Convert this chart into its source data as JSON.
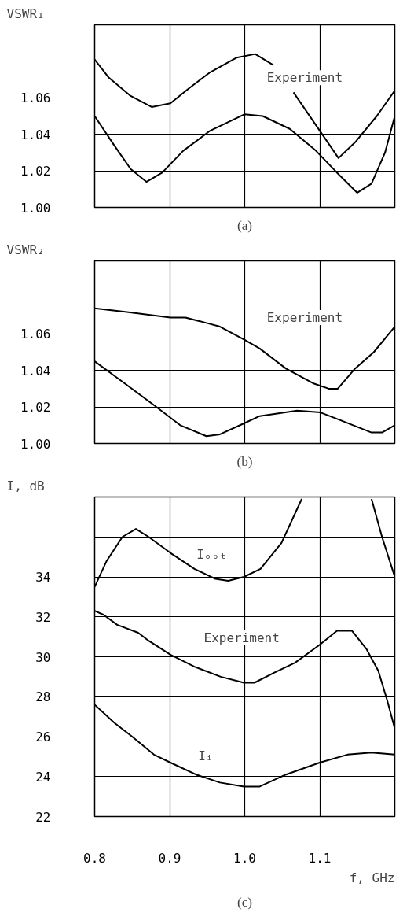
{
  "chart_data": [
    {
      "type": "line",
      "ylabel": "VSWR₁",
      "xlim": [
        0.8,
        1.2
      ],
      "ylim": [
        1.0,
        1.1
      ],
      "xticks": [
        0.8,
        0.9,
        1.0,
        1.1
      ],
      "yticks": [
        {
          "value": 1.0,
          "label": "1.00"
        },
        1.02,
        1.04,
        1.06,
        {
          "value": 1.08,
          "label": null
        }
      ],
      "tick_labels": "y",
      "grid": true,
      "series": [
        {
          "color": "#000000",
          "x": [
            0.8,
            0.819,
            0.848,
            0.876,
            0.901,
            0.925,
            0.954,
            0.989,
            1.014,
            1.038,
            1.05,
            1.065,
            1.095,
            1.125,
            1.148,
            1.176,
            1.2
          ],
          "values": [
            1.081,
            1.071,
            1.061,
            1.055,
            1.057,
            1.065,
            1.074,
            1.082,
            1.084,
            1.078,
            null,
            1.063,
            1.045,
            1.027,
            1.036,
            1.05,
            1.064
          ]
        },
        {
          "color": "#000000",
          "x": [
            0.8,
            0.826,
            0.848,
            0.869,
            0.89,
            0.918,
            0.954,
            1.0,
            1.024,
            1.06,
            1.095,
            1.123,
            1.15,
            1.169,
            1.187,
            1.2
          ],
          "values": [
            1.05,
            1.034,
            1.021,
            1.014,
            1.019,
            1.031,
            1.042,
            1.051,
            1.05,
            1.043,
            1.031,
            1.019,
            1.008,
            1.013,
            1.03,
            1.05
          ]
        }
      ],
      "annotations": [
        "Experiment",
        "(a)"
      ]
    },
    {
      "type": "line",
      "ylabel": "VSWR₂",
      "xlim": [
        0.8,
        1.2
      ],
      "ylim": [
        1.0,
        1.1
      ],
      "xticks": [
        0.8,
        0.9,
        1.0,
        1.1
      ],
      "yticks": [
        {
          "value": 1.0,
          "label": "1.00"
        },
        1.02,
        1.04,
        1.06,
        {
          "value": 1.08,
          "label": null
        }
      ],
      "tick_labels": "y",
      "grid": true,
      "series": [
        {
          "color": "#000000",
          "x": [
            0.8,
            0.843,
            0.901,
            0.921,
            0.949,
            0.967,
            0.999,
            1.02,
            1.055,
            1.091,
            1.112,
            1.124,
            1.147,
            1.172,
            1.2
          ],
          "values": [
            1.074,
            1.072,
            1.069,
            1.069,
            1.066,
            1.064,
            1.057,
            1.052,
            1.041,
            1.033,
            1.03,
            1.03,
            1.041,
            1.05,
            1.064
          ]
        },
        {
          "color": "#000000",
          "x": [
            0.8,
            0.843,
            0.879,
            0.914,
            0.949,
            0.967,
            0.999,
            1.02,
            1.07,
            1.101,
            1.126,
            1.169,
            1.183,
            1.2
          ],
          "values": [
            1.045,
            1.032,
            1.021,
            1.01,
            1.004,
            1.005,
            1.011,
            1.015,
            1.018,
            1.017,
            1.013,
            1.006,
            1.006,
            1.01
          ]
        }
      ],
      "annotations": [
        "Experiment",
        "(b)"
      ]
    },
    {
      "type": "line",
      "ylabel": "I, dB",
      "xlabel": "f, GHz",
      "xlim": [
        0.8,
        1.2
      ],
      "ylim": [
        22,
        38
      ],
      "xticks": [
        0.8,
        0.9,
        {
          "value": 1.0,
          "label": "1.0"
        },
        1.1
      ],
      "yticks": [
        22,
        24,
        26,
        28,
        30,
        32,
        34,
        {
          "value": 36,
          "label": null
        }
      ],
      "grid": true,
      "series": [
        {
          "color": "#000000",
          "x": [
            0.8,
            0.816,
            0.837,
            0.855,
            0.872,
            0.901,
            0.933,
            0.961,
            0.978,
            0.999,
            1.021,
            1.049,
            1.076,
            1.12,
            1.169,
            1.183,
            1.2
          ],
          "values": [
            33.5,
            34.8,
            36.0,
            36.4,
            36.0,
            35.2,
            34.4,
            33.9,
            33.8,
            34.0,
            34.4,
            35.7,
            37.9,
            null,
            37.9,
            36.0,
            34.0
          ]
        },
        {
          "color": "#000000",
          "x": [
            0.8,
            0.812,
            0.83,
            0.858,
            0.872,
            0.901,
            0.933,
            0.968,
            0.999,
            1.013,
            1.039,
            1.067,
            1.1,
            1.123,
            1.143,
            1.162,
            1.178,
            1.19,
            1.2
          ],
          "values": [
            32.3,
            32.1,
            31.6,
            31.2,
            30.8,
            30.1,
            29.5,
            29.0,
            28.7,
            28.7,
            29.2,
            29.7,
            30.6,
            31.3,
            31.3,
            30.4,
            29.3,
            27.8,
            26.4
          ]
        },
        {
          "color": "#000000",
          "x": [
            0.8,
            0.826,
            0.85,
            0.879,
            0.901,
            0.935,
            0.967,
            0.999,
            1.02,
            1.055,
            1.1,
            1.137,
            1.169,
            1.2
          ],
          "values": [
            27.6,
            26.7,
            26.0,
            25.1,
            24.7,
            24.1,
            23.7,
            23.5,
            23.5,
            24.1,
            24.7,
            25.1,
            25.2,
            25.1
          ]
        }
      ],
      "annotations": [
        "Iₒₚₜ",
        "Experiment",
        "Iᵢ",
        "(c)"
      ]
    }
  ]
}
